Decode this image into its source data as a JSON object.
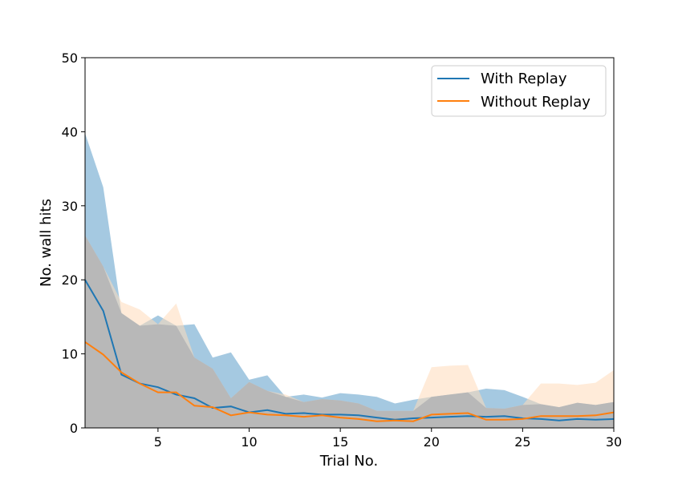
{
  "chart_data": {
    "type": "area",
    "xlabel": "Trial No.",
    "ylabel": "No. wall hits",
    "xlim": [
      1,
      30
    ],
    "ylim": [
      0,
      50
    ],
    "xticks": [
      5,
      10,
      15,
      20,
      25,
      30
    ],
    "yticks": [
      0,
      10,
      20,
      30,
      40,
      50
    ],
    "grid": false,
    "legend_position": "top-right",
    "x": [
      1,
      2,
      3,
      4,
      5,
      6,
      7,
      8,
      9,
      10,
      11,
      12,
      13,
      14,
      15,
      16,
      17,
      18,
      19,
      20,
      21,
      22,
      23,
      24,
      25,
      26,
      27,
      28,
      29,
      30
    ],
    "series": [
      {
        "name": "With Replay",
        "color": "#1f77b4",
        "band_color": "#1f77b4",
        "values": [
          20.0,
          15.8,
          7.2,
          6.0,
          5.5,
          4.5,
          4.0,
          2.7,
          2.9,
          2.1,
          2.4,
          1.9,
          2.0,
          1.8,
          1.8,
          1.7,
          1.4,
          1.1,
          1.3,
          1.4,
          1.5,
          1.6,
          1.5,
          1.6,
          1.3,
          1.2,
          1.0,
          1.2,
          1.1,
          1.2
        ],
        "upper": [
          39.8,
          32.5,
          15.5,
          13.8,
          15.2,
          13.8,
          14.0,
          9.5,
          10.2,
          6.5,
          7.1,
          4.2,
          4.5,
          4.1,
          4.7,
          4.5,
          4.2,
          3.3,
          3.8,
          4.2,
          4.5,
          4.8,
          5.3,
          5.1,
          4.2,
          3.2,
          2.8,
          3.4,
          3.1,
          3.5
        ],
        "lower": [
          0,
          0,
          0,
          0,
          0,
          0,
          0,
          0,
          0,
          0,
          0,
          0,
          0,
          0,
          0,
          0,
          0,
          0,
          0,
          0,
          0,
          0,
          0,
          0,
          0,
          0,
          0,
          0,
          0,
          0
        ]
      },
      {
        "name": "Without Replay",
        "color": "#ff7f0e",
        "band_color": "#ffdab9",
        "values": [
          11.6,
          9.9,
          7.5,
          6.0,
          4.8,
          4.8,
          3.0,
          2.8,
          1.7,
          2.1,
          1.8,
          1.7,
          1.5,
          1.7,
          1.4,
          1.2,
          0.9,
          1.0,
          0.9,
          1.8,
          1.9,
          2.0,
          1.1,
          1.1,
          1.2,
          1.6,
          1.6,
          1.6,
          1.7,
          2.1
        ],
        "upper": [
          26.0,
          21.8,
          17.0,
          16.0,
          14.0,
          16.8,
          9.5,
          8.0,
          4.0,
          6.2,
          5.0,
          4.5,
          3.5,
          3.9,
          3.7,
          3.3,
          2.3,
          2.3,
          2.3,
          8.2,
          8.4,
          8.5,
          2.7,
          2.6,
          3.1,
          6.0,
          6.0,
          5.8,
          6.1,
          7.8
        ],
        "lower": [
          0,
          0,
          0,
          0,
          0,
          0,
          0,
          0,
          0,
          0,
          0,
          0,
          0,
          0,
          0,
          0,
          0,
          0,
          0,
          0,
          0,
          0,
          0,
          0,
          0,
          0,
          0,
          0,
          0,
          0
        ]
      }
    ]
  }
}
